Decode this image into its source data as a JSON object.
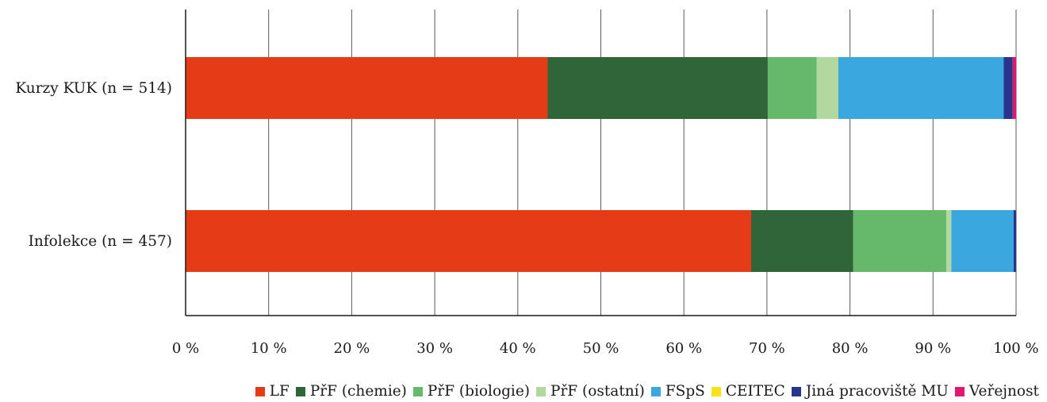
{
  "chart_data": {
    "type": "bar",
    "orientation": "horizontal",
    "stacked": true,
    "percent": true,
    "title": "",
    "xlabel": "",
    "ylabel": "",
    "xlim": [
      0,
      100
    ],
    "x_ticks": [
      "0 %",
      "10 %",
      "20 %",
      "30 %",
      "40 %",
      "50 %",
      "60 %",
      "70 %",
      "80 %",
      "90 %",
      "100 %"
    ],
    "categories": [
      "Kurzy KUK (n = 514)",
      "Infolekce (n = 457)"
    ],
    "series": [
      {
        "name": "LF",
        "color": "#e63b17",
        "values": [
          43.6,
          68.1
        ]
      },
      {
        "name": "PřF (chemie)",
        "color": "#30653a",
        "values": [
          26.5,
          12.3
        ]
      },
      {
        "name": "PřF (biologie)",
        "color": "#66b96b",
        "values": [
          5.9,
          11.2
        ]
      },
      {
        "name": "PřF (ostatní)",
        "color": "#b2d89f",
        "values": [
          2.6,
          0.6
        ]
      },
      {
        "name": "FSpS",
        "color": "#3aa8de",
        "values": [
          19.9,
          7.5
        ]
      },
      {
        "name": "CEITEC",
        "color": "#f7e117",
        "values": [
          0.0,
          0.0
        ]
      },
      {
        "name": "Jiná pracoviště MU",
        "color": "#27358f",
        "values": [
          1.1,
          0.3
        ]
      },
      {
        "name": "Veřejnost",
        "color": "#e5176b",
        "values": [
          0.4,
          0.0
        ]
      }
    ],
    "grid": true,
    "legend_position": "bottom"
  }
}
